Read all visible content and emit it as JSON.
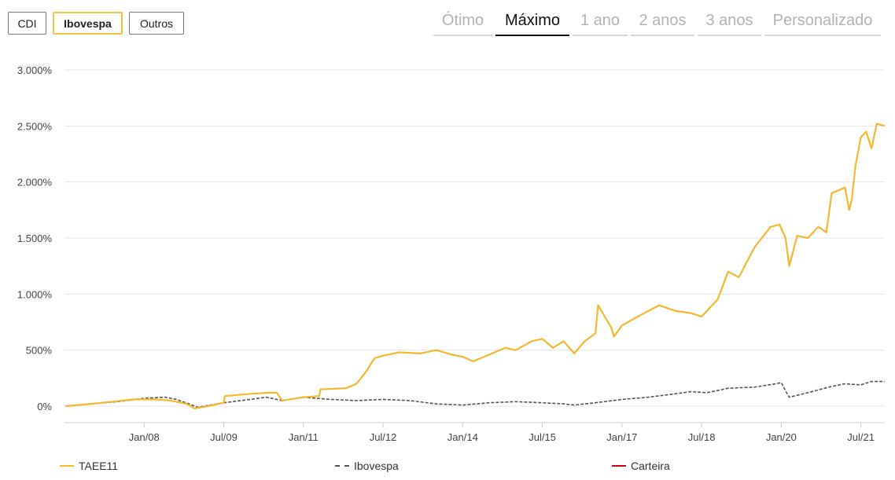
{
  "benchmark_buttons": [
    {
      "label": "CDI",
      "active": false
    },
    {
      "label": "Ibovespa",
      "active": true
    },
    {
      "label": "Outros",
      "active": false
    }
  ],
  "range_tabs": [
    {
      "label": "Ótimo",
      "active": false
    },
    {
      "label": "Máximo",
      "active": true
    },
    {
      "label": "1 ano",
      "active": false
    },
    {
      "label": "2 anos",
      "active": false
    },
    {
      "label": "3 anos",
      "active": false
    },
    {
      "label": "Personalizado",
      "active": false
    }
  ],
  "legend": [
    {
      "label": "TAEE11",
      "color": "#f5b82e",
      "style": "solid"
    },
    {
      "label": "Ibovespa",
      "color": "#555555",
      "style": "dashed"
    },
    {
      "label": "Carteira",
      "color": "#d0021b",
      "style": "solid"
    }
  ],
  "chart_data": {
    "type": "line",
    "y_unit": "%",
    "ylim": [
      0,
      3000
    ],
    "y_ticks": [
      0,
      500,
      1000,
      1500,
      2000,
      2500,
      3000
    ],
    "y_tick_labels": [
      "0%",
      "500%",
      "1.000%",
      "1.500%",
      "2.000%",
      "2.500%",
      "3.000%"
    ],
    "x_tick_labels": [
      "Jan/08",
      "Jul/09",
      "Jan/11",
      "Jul/12",
      "Jan/14",
      "Jul/15",
      "Jan/17",
      "Jul/18",
      "Jan/20",
      "Jul/21"
    ],
    "xlim": [
      2006.5,
      2021.95
    ],
    "x_ticks": [
      2008.0,
      2009.5,
      2011.0,
      2012.5,
      2014.0,
      2015.5,
      2017.0,
      2018.5,
      2020.0,
      2021.5
    ],
    "grid": "horizontal",
    "legend_position": "bottom",
    "series": [
      {
        "name": "TAEE11",
        "color": "#f5b82e",
        "x": [
          2006.52,
          2007.0,
          2007.4,
          2007.8,
          2008.2,
          2008.5,
          2008.8,
          2008.95,
          2009.2,
          2009.5,
          2009.52,
          2010.0,
          2010.35,
          2010.5,
          2010.6,
          2011.0,
          2011.3,
          2011.32,
          2011.8,
          2012.0,
          2012.2,
          2012.3,
          2012.35,
          2012.5,
          2012.8,
          2013.2,
          2013.5,
          2013.8,
          2014.0,
          2014.2,
          2014.5,
          2014.8,
          2015.0,
          2015.3,
          2015.5,
          2015.7,
          2015.9,
          2016.1,
          2016.3,
          2016.5,
          2016.55,
          2016.8,
          2016.85,
          2017.0,
          2017.3,
          2017.5,
          2017.7,
          2018.0,
          2018.3,
          2018.5,
          2018.8,
          2019.0,
          2019.2,
          2019.5,
          2019.8,
          2019.97,
          2020.08,
          2020.15,
          2020.3,
          2020.5,
          2020.7,
          2020.85,
          2020.95,
          2021.2,
          2021.28,
          2021.33,
          2021.4,
          2021.5,
          2021.6,
          2021.7,
          2021.8,
          2021.95
        ],
        "y": [
          0,
          20,
          40,
          60,
          60,
          50,
          20,
          -20,
          0,
          30,
          90,
          110,
          120,
          120,
          50,
          80,
          90,
          150,
          160,
          200,
          320,
          400,
          430,
          450,
          480,
          470,
          500,
          460,
          440,
          400,
          460,
          520,
          500,
          580,
          600,
          520,
          580,
          470,
          580,
          650,
          900,
          700,
          620,
          720,
          800,
          850,
          900,
          850,
          830,
          800,
          950,
          1200,
          1150,
          1420,
          1600,
          1620,
          1500,
          1250,
          1520,
          1500,
          1600,
          1550,
          1900,
          1950,
          1750,
          1850,
          2150,
          2400,
          2450,
          2300,
          2520,
          2500
        ]
      },
      {
        "name": "Ibovespa",
        "color": "#555555",
        "x": [
          2006.52,
          2007.0,
          2007.5,
          2008.0,
          2008.4,
          2008.6,
          2008.85,
          2009.0,
          2009.5,
          2010.0,
          2010.3,
          2010.6,
          2011.0,
          2011.5,
          2012.0,
          2012.5,
          2013.0,
          2013.5,
          2014.0,
          2014.5,
          2015.0,
          2015.5,
          2015.9,
          2016.1,
          2016.5,
          2017.0,
          2017.5,
          2018.0,
          2018.3,
          2018.6,
          2019.0,
          2019.5,
          2019.9,
          2020.0,
          2020.1,
          2020.15,
          2020.5,
          2020.9,
          2021.2,
          2021.5,
          2021.7,
          2021.95
        ],
        "y": [
          0,
          20,
          40,
          70,
          80,
          60,
          20,
          -10,
          30,
          60,
          80,
          50,
          80,
          60,
          50,
          60,
          50,
          20,
          10,
          30,
          40,
          30,
          20,
          10,
          30,
          60,
          80,
          110,
          130,
          120,
          160,
          170,
          200,
          210,
          120,
          80,
          120,
          170,
          200,
          190,
          220,
          220
        ]
      },
      {
        "name": "Carteira",
        "color": "#d0021b",
        "x": [],
        "y": []
      }
    ]
  }
}
